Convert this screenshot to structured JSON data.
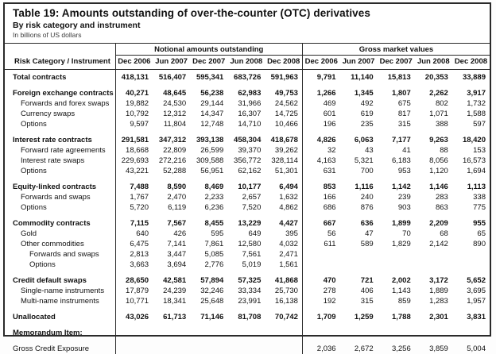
{
  "title": "Table 19: Amounts outstanding of over-the-counter (OTC) derivatives",
  "subtitle": "By risk category and instrument",
  "unit_note": "In billions of US dollars",
  "table": {
    "row_header": "Risk Category / Instrument",
    "col_groups": {
      "notional": "Notional amounts outstanding",
      "gross": "Gross market values"
    },
    "periods": [
      "Dec 2006",
      "Jun 2007",
      "Dec 2007",
      "Jun 2008",
      "Dec 2008"
    ],
    "rows": [
      {
        "label": "Total contracts",
        "level": 0,
        "bold": true,
        "gap": false,
        "notional": [
          "418,131",
          "516,407",
          "595,341",
          "683,726",
          "591,963"
        ],
        "gross": [
          "9,791",
          "11,140",
          "15,813",
          "20,353",
          "33,889"
        ]
      },
      {
        "label": "Foreign exchange contracts",
        "level": 0,
        "bold": true,
        "gap": true,
        "notional": [
          "40,271",
          "48,645",
          "56,238",
          "62,983",
          "49,753"
        ],
        "gross": [
          "1,266",
          "1,345",
          "1,807",
          "2,262",
          "3,917"
        ]
      },
      {
        "label": "Forwards and forex swaps",
        "level": 1,
        "bold": false,
        "gap": false,
        "notional": [
          "19,882",
          "24,530",
          "29,144",
          "31,966",
          "24,562"
        ],
        "gross": [
          "469",
          "492",
          "675",
          "802",
          "1,732"
        ]
      },
      {
        "label": "Currency swaps",
        "level": 1,
        "bold": false,
        "gap": false,
        "notional": [
          "10,792",
          "12,312",
          "14,347",
          "16,307",
          "14,725"
        ],
        "gross": [
          "601",
          "619",
          "817",
          "1,071",
          "1,588"
        ]
      },
      {
        "label": "Options",
        "level": 1,
        "bold": false,
        "gap": false,
        "notional": [
          "9,597",
          "11,804",
          "12,748",
          "14,710",
          "10,466"
        ],
        "gross": [
          "196",
          "235",
          "315",
          "388",
          "597"
        ]
      },
      {
        "label": "Interest rate contracts",
        "level": 0,
        "bold": true,
        "gap": true,
        "notional": [
          "291,581",
          "347,312",
          "393,138",
          "458,304",
          "418,678"
        ],
        "gross": [
          "4,826",
          "6,063",
          "7,177",
          "9,263",
          "18,420"
        ]
      },
      {
        "label": "Forward rate agreements",
        "level": 1,
        "bold": false,
        "gap": false,
        "notional": [
          "18,668",
          "22,809",
          "26,599",
          "39,370",
          "39,262"
        ],
        "gross": [
          "32",
          "43",
          "41",
          "88",
          "153"
        ]
      },
      {
        "label": "Interest rate swaps",
        "level": 1,
        "bold": false,
        "gap": false,
        "notional": [
          "229,693",
          "272,216",
          "309,588",
          "356,772",
          "328,114"
        ],
        "gross": [
          "4,163",
          "5,321",
          "6,183",
          "8,056",
          "16,573"
        ]
      },
      {
        "label": "Options",
        "level": 1,
        "bold": false,
        "gap": false,
        "notional": [
          "43,221",
          "52,288",
          "56,951",
          "62,162",
          "51,301"
        ],
        "gross": [
          "631",
          "700",
          "953",
          "1,120",
          "1,694"
        ]
      },
      {
        "label": "Equity-linked contracts",
        "level": 0,
        "bold": true,
        "gap": true,
        "notional": [
          "7,488",
          "8,590",
          "8,469",
          "10,177",
          "6,494"
        ],
        "gross": [
          "853",
          "1,116",
          "1,142",
          "1,146",
          "1,113"
        ]
      },
      {
        "label": "Forwards and swaps",
        "level": 1,
        "bold": false,
        "gap": false,
        "notional": [
          "1,767",
          "2,470",
          "2,233",
          "2,657",
          "1,632"
        ],
        "gross": [
          "166",
          "240",
          "239",
          "283",
          "338"
        ]
      },
      {
        "label": "Options",
        "level": 1,
        "bold": false,
        "gap": false,
        "notional": [
          "5,720",
          "6,119",
          "6,236",
          "7,520",
          "4,862"
        ],
        "gross": [
          "686",
          "876",
          "903",
          "863",
          "775"
        ]
      },
      {
        "label": "Commodity contracts",
        "level": 0,
        "bold": true,
        "gap": true,
        "notional": [
          "7,115",
          "7,567",
          "8,455",
          "13,229",
          "4,427"
        ],
        "gross": [
          "667",
          "636",
          "1,899",
          "2,209",
          "955"
        ]
      },
      {
        "label": "Gold",
        "level": 1,
        "bold": false,
        "gap": false,
        "notional": [
          "640",
          "426",
          "595",
          "649",
          "395"
        ],
        "gross": [
          "56",
          "47",
          "70",
          "68",
          "65"
        ]
      },
      {
        "label": "Other commodities",
        "level": 1,
        "bold": false,
        "gap": false,
        "notional": [
          "6,475",
          "7,141",
          "7,861",
          "12,580",
          "4,032"
        ],
        "gross": [
          "611",
          "589",
          "1,829",
          "2,142",
          "890"
        ]
      },
      {
        "label": "Forwards and swaps",
        "level": 2,
        "bold": false,
        "gap": false,
        "notional": [
          "2,813",
          "3,447",
          "5,085",
          "7,561",
          "2,471"
        ],
        "gross": [
          "",
          "",
          "",
          "",
          ""
        ]
      },
      {
        "label": "Options",
        "level": 2,
        "bold": false,
        "gap": false,
        "notional": [
          "3,663",
          "3,694",
          "2,776",
          "5,019",
          "1,561"
        ],
        "gross": [
          "",
          "",
          "",
          "",
          ""
        ]
      },
      {
        "label": "Credit default swaps",
        "level": 0,
        "bold": true,
        "gap": true,
        "notional": [
          "28,650",
          "42,581",
          "57,894",
          "57,325",
          "41,868"
        ],
        "gross": [
          "470",
          "721",
          "2,002",
          "3,172",
          "5,652"
        ]
      },
      {
        "label": "Single-name instruments",
        "level": 1,
        "bold": false,
        "gap": false,
        "notional": [
          "17,879",
          "24,239",
          "32,246",
          "33,334",
          "25,730"
        ],
        "gross": [
          "278",
          "406",
          "1,143",
          "1,889",
          "3,695"
        ]
      },
      {
        "label": "Multi-name instruments",
        "level": 1,
        "bold": false,
        "gap": false,
        "notional": [
          "10,771",
          "18,341",
          "25,648",
          "23,991",
          "16,138"
        ],
        "gross": [
          "192",
          "315",
          "859",
          "1,283",
          "1,957"
        ]
      },
      {
        "label": "Unallocated",
        "level": 0,
        "bold": true,
        "gap": true,
        "notional": [
          "43,026",
          "61,713",
          "71,146",
          "81,708",
          "70,742"
        ],
        "gross": [
          "1,709",
          "1,259",
          "1,788",
          "2,301",
          "3,831"
        ]
      },
      {
        "label": "Memorandum Item:",
        "level": 0,
        "bold": true,
        "gap": true,
        "notional": [
          "",
          "",
          "",
          "",
          ""
        ],
        "gross": [
          "",
          "",
          "",
          "",
          ""
        ]
      },
      {
        "label": "Gross Credit Exposure",
        "level": 0,
        "bold": false,
        "gap": true,
        "notional": [
          "",
          "",
          "",
          "",
          ""
        ],
        "gross": [
          "2,036",
          "2,672",
          "3,256",
          "3,859",
          "5,004"
        ]
      }
    ]
  }
}
